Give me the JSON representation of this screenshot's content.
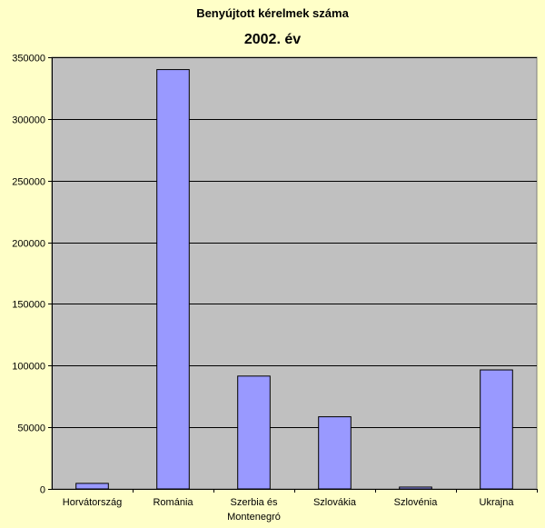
{
  "chart_data": {
    "type": "bar",
    "title": "Benyújtott kérelmek száma",
    "subtitle": "2002. év",
    "categories": [
      "Horvátország",
      "Románia",
      "Szerbia és Montenegró",
      "Szlovákia",
      "Szlovénia",
      "Ukrajna"
    ],
    "category_label_lines": [
      [
        "Horvátország"
      ],
      [
        "Románia"
      ],
      [
        "Szerbia és",
        "Montenegró"
      ],
      [
        "Szlovákia"
      ],
      [
        "Szlovénia"
      ],
      [
        "Ukrajna"
      ]
    ],
    "values": [
      4500,
      340000,
      91500,
      58500,
      1500,
      96500
    ],
    "ylim": [
      0,
      350000
    ],
    "yticks": [
      0,
      50000,
      100000,
      150000,
      200000,
      250000,
      300000,
      350000
    ],
    "grid": true,
    "legend": "none",
    "colors": {
      "plot_background": "#c0c0c0",
      "page_background": "#ffffc8",
      "bar_fill": "#9999ff",
      "bar_stroke": "#000000",
      "grid": "#000000"
    }
  }
}
